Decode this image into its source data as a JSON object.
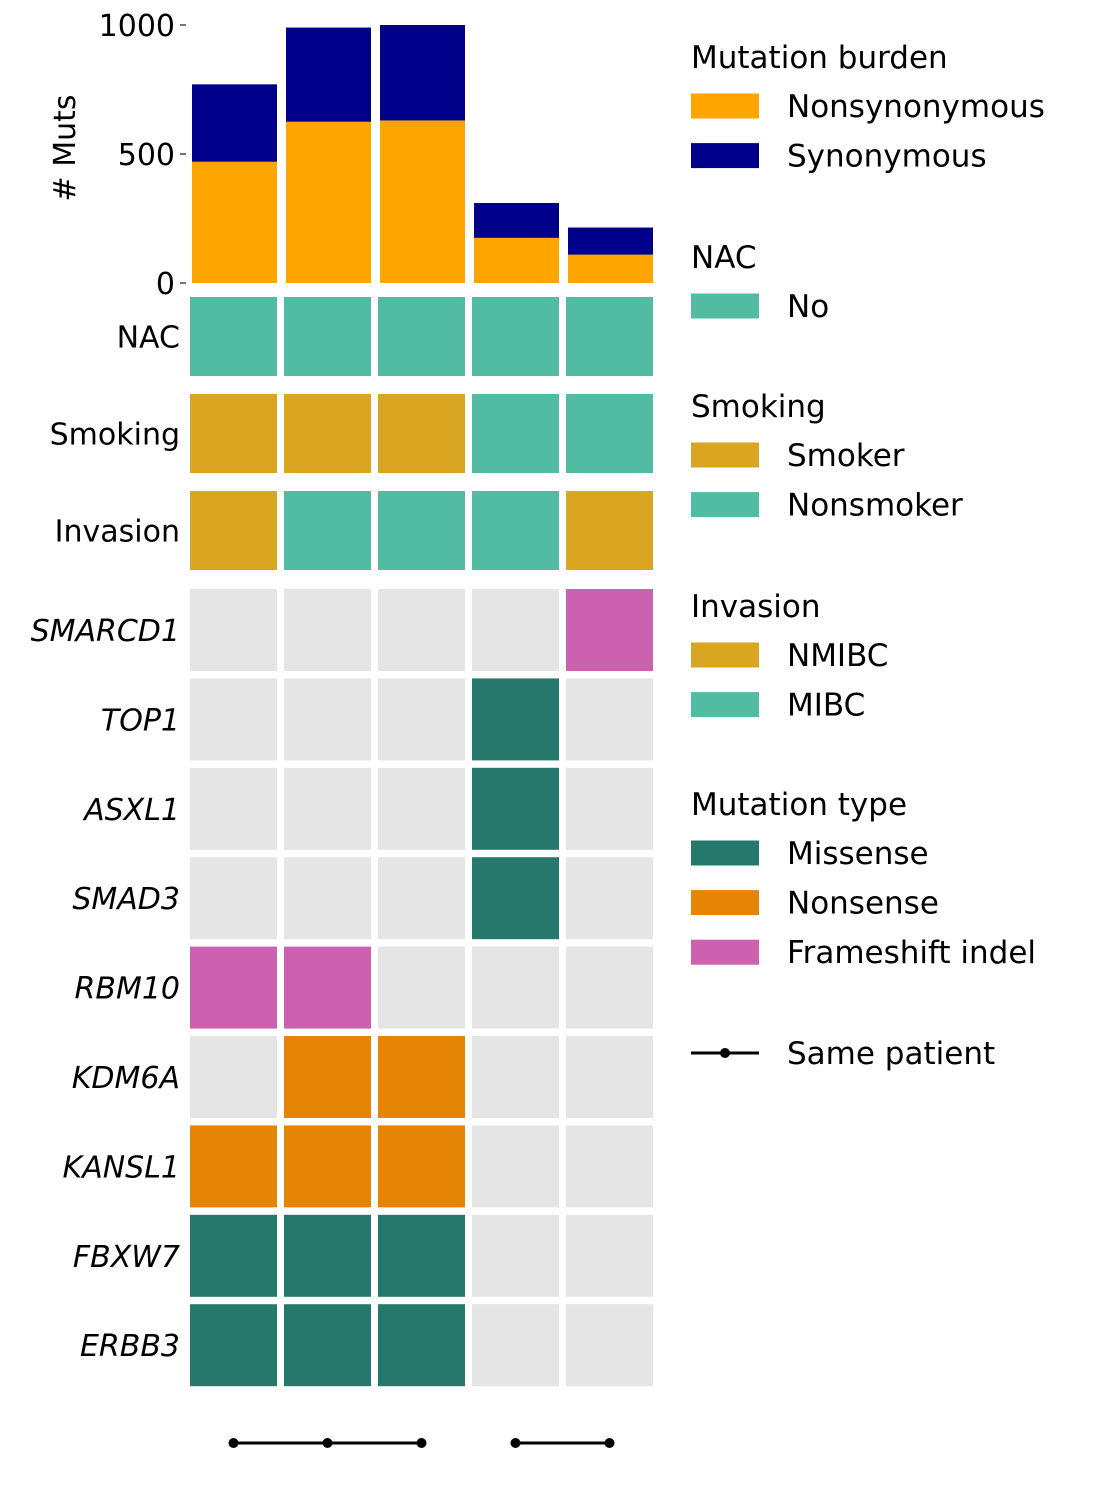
{
  "chart_data": {
    "type": "oncoprint",
    "n_samples": 5,
    "burden": {
      "ylabel": "# Muts",
      "ylim": [
        0,
        1000
      ],
      "yticks": [
        0,
        500,
        1000
      ],
      "series": [
        {
          "name": "Nonsynonymous",
          "color": "#FFA500",
          "values": [
            470,
            625,
            630,
            175,
            110
          ]
        },
        {
          "name": "Synonymous",
          "color": "#00008B",
          "values": [
            300,
            365,
            370,
            135,
            105
          ]
        }
      ]
    },
    "clinical_tracks": [
      {
        "label": "NAC",
        "values": [
          "No",
          "No",
          "No",
          "No",
          "No"
        ]
      },
      {
        "label": "Smoking",
        "values": [
          "Smoker",
          "Smoker",
          "Smoker",
          "Nonsmoker",
          "Nonsmoker"
        ]
      },
      {
        "label": "Invasion",
        "values": [
          "NMIBC",
          "MIBC",
          "MIBC",
          "MIBC",
          "NMIBC"
        ]
      }
    ],
    "genes": [
      {
        "label": "SMARCD1",
        "values": [
          null,
          null,
          null,
          null,
          "Frameshift indel"
        ]
      },
      {
        "label": "TOP1",
        "values": [
          null,
          null,
          null,
          "Missense",
          null
        ]
      },
      {
        "label": "ASXL1",
        "values": [
          null,
          null,
          null,
          "Missense",
          null
        ]
      },
      {
        "label": "SMAD3",
        "values": [
          null,
          null,
          null,
          "Missense",
          null
        ]
      },
      {
        "label": "RBM10",
        "values": [
          "Frameshift indel",
          "Frameshift indel",
          null,
          null,
          null
        ]
      },
      {
        "label": "KDM6A",
        "values": [
          null,
          "Nonsense",
          "Nonsense",
          null,
          null
        ]
      },
      {
        "label": "KANSL1",
        "values": [
          "Nonsense",
          "Nonsense",
          "Nonsense",
          null,
          null
        ]
      },
      {
        "label": "FBXW7",
        "values": [
          "Missense",
          "Missense",
          "Missense",
          null,
          null
        ]
      },
      {
        "label": "ERBB3",
        "values": [
          "Missense",
          "Missense",
          "Missense",
          null,
          null
        ]
      }
    ],
    "patient_groups": [
      [
        0,
        1,
        2
      ],
      [
        3,
        4
      ]
    ],
    "colors": {
      "No": "#52BCA3",
      "Smoker": "#DAA520",
      "Nonsmoker": "#52BCA3",
      "NMIBC": "#DAA520",
      "MIBC": "#52BCA3",
      "Missense": "#24796C",
      "Nonsense": "#E68505",
      "Frameshift indel": "#CC61B0",
      "empty": "#E5E5E5"
    },
    "legend": [
      {
        "title": "Mutation burden",
        "items": [
          {
            "label": "Nonsynonymous",
            "color": "#FFA500"
          },
          {
            "label": "Synonymous",
            "color": "#00008B"
          }
        ]
      },
      {
        "title": "NAC",
        "items": [
          {
            "label": "No",
            "color": "#52BCA3"
          }
        ]
      },
      {
        "title": "Smoking",
        "items": [
          {
            "label": "Smoker",
            "color": "#DAA520"
          },
          {
            "label": "Nonsmoker",
            "color": "#52BCA3"
          }
        ]
      },
      {
        "title": "Invasion",
        "items": [
          {
            "label": "NMIBC",
            "color": "#DAA520"
          },
          {
            "label": "MIBC",
            "color": "#52BCA3"
          }
        ]
      },
      {
        "title": "Mutation type",
        "items": [
          {
            "label": "Missense",
            "color": "#24796C"
          },
          {
            "label": "Nonsense",
            "color": "#E68505"
          },
          {
            "label": "Frameshift indel",
            "color": "#CC61B0"
          }
        ]
      }
    ],
    "same_patient_label": "Same patient"
  }
}
